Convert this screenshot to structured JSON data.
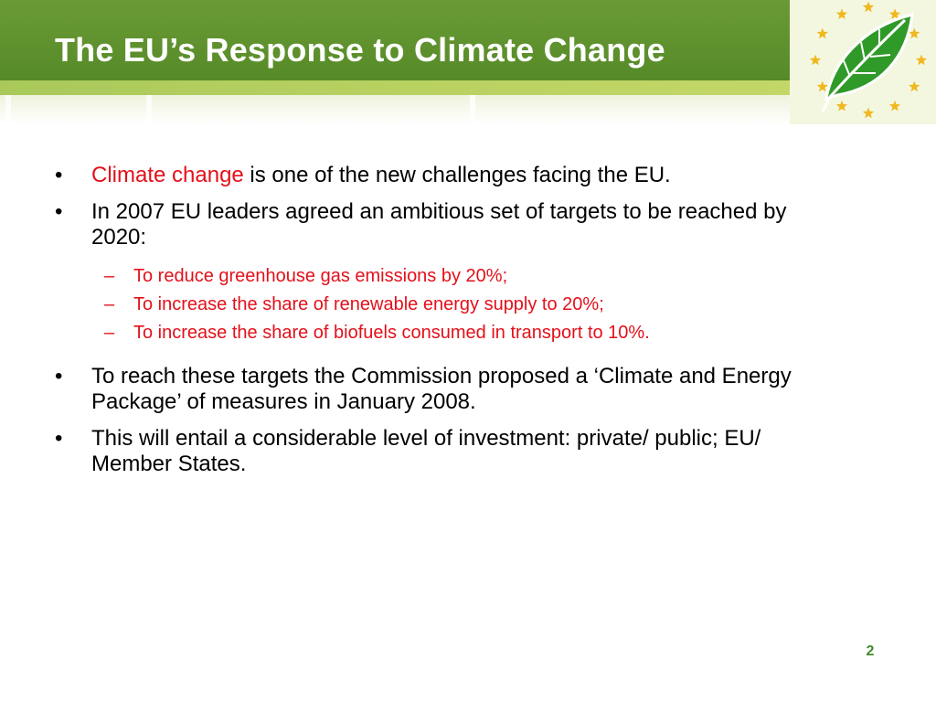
{
  "slide": {
    "title": "The EU’s Response to Climate Change",
    "page_number": "2",
    "colors": {
      "header_green": "#5f922e",
      "accent_red": "#e3101a",
      "star_gold": "#f0b81e",
      "leaf_green": "#2f9a28"
    },
    "logo": {
      "icon": "eu-leaf-with-stars-icon"
    }
  },
  "bullets": [
    {
      "marker": "•",
      "highlight": "Climate change",
      "text": " is one of the new challenges facing the EU."
    },
    {
      "marker": "•",
      "text": "In 2007 EU leaders agreed an ambitious set of targets to be reached by 2020:"
    },
    {
      "marker": "•",
      "text": "To reach these targets the Commission proposed a ‘Climate and Energy Package’ of measures in January 2008."
    },
    {
      "marker": "•",
      "text": "This will entail a considerable level of investment: private/ public; EU/ Member States."
    }
  ],
  "sub_bullets": [
    {
      "marker": "–",
      "text": "To reduce greenhouse gas emissions by 20%;"
    },
    {
      "marker": "–",
      "text": "To increase the share of renewable energy supply to 20%;"
    },
    {
      "marker": "–",
      "text": "To increase the share of biofuels consumed in transport to 10%."
    }
  ]
}
